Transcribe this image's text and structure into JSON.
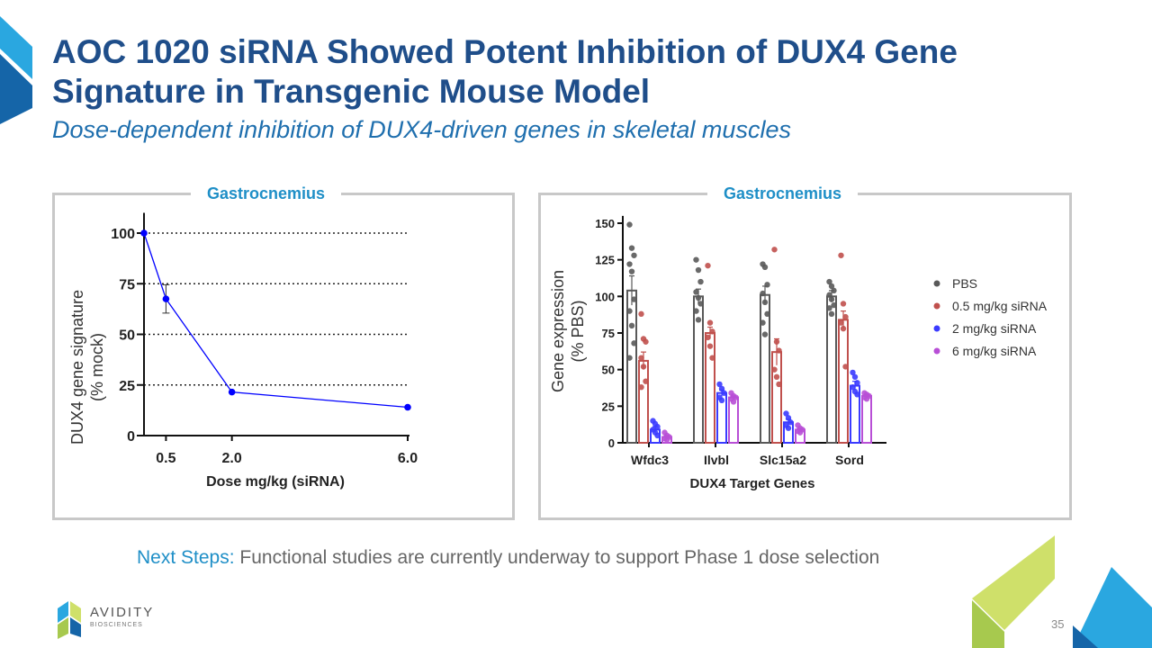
{
  "slide": {
    "title": "AOC 1020 siRNA Showed Potent Inhibition of DUX4 Gene Signature in Transgenic Mouse Model",
    "subtitle": "Dose-dependent inhibition of DUX4-driven genes in skeletal muscles",
    "next_steps_lead": "Next Steps:",
    "next_steps_text": "Functional studies are currently underway to support Phase 1 dose selection",
    "page_number": "35",
    "logo_name": "AVIDITY",
    "logo_sub": "BIOSCIENCES"
  },
  "colors": {
    "title": "#1f4e8a",
    "accent": "#1f8fc7",
    "panel_border": "#c8c8c8",
    "pbs": "#595959",
    "dose_0_5": "#c0504d",
    "dose_2": "#3b3bff",
    "dose_6": "#b84fd6"
  },
  "chart_data": [
    {
      "type": "line",
      "panel_title": "Gastrocnemius",
      "title": "",
      "xlabel": "Dose mg/kg (siRNA)",
      "ylabel_lines": [
        "DUX4 gene signature",
        "(% mock)"
      ],
      "x": [
        0,
        0.5,
        2.0,
        6.0
      ],
      "y": [
        100,
        67.5,
        21.5,
        14
      ],
      "error": [
        0,
        7,
        0,
        0
      ],
      "x_ticks": [
        "0.5",
        "2.0",
        "6.0"
      ],
      "y_ticks": [
        "0",
        "25",
        "50",
        "75",
        "100"
      ],
      "ylim": [
        0,
        110
      ],
      "gridlines_y": [
        25,
        50,
        75,
        100
      ],
      "series_color": "#0000ff"
    },
    {
      "type": "bar",
      "panel_title": "Gastrocnemius",
      "title": "",
      "xlabel": "DUX4 Target Genes",
      "ylabel_lines": [
        "Gene expression",
        "(% PBS)"
      ],
      "categories": [
        "Wfdc3",
        "Ilvbl",
        "Slc15a2",
        "Sord"
      ],
      "y_ticks": [
        "0",
        "25",
        "50",
        "75",
        "100",
        "125",
        "150"
      ],
      "ylim": [
        0,
        155
      ],
      "series": [
        {
          "name": "PBS",
          "color": "#595959",
          "values": [
            104,
            100,
            101,
            100
          ],
          "errors": [
            10,
            5,
            6,
            4
          ],
          "points": [
            [
              149,
              133,
              128,
              122,
              117,
              98,
              90,
              80,
              68,
              58
            ],
            [
              125,
              118,
              110,
              103,
              99,
              95,
              90,
              84
            ],
            [
              122,
              120,
              108,
              102,
              96,
              88,
              82,
              74
            ],
            [
              110,
              107,
              104,
              101,
              98,
              94,
              92,
              88
            ]
          ]
        },
        {
          "name": "0.5 mg/kg siRNA",
          "color": "#c0504d",
          "values": [
            56,
            75,
            62,
            84
          ],
          "errors": [
            6,
            4,
            9,
            6
          ],
          "points": [
            [
              88,
              71,
              69,
              58,
              52,
              42,
              38
            ],
            [
              121,
              82,
              76,
              72,
              66,
              58
            ],
            [
              132,
              69,
              63,
              50,
              45,
              40
            ],
            [
              128,
              95,
              86,
              82,
              78,
              52
            ]
          ]
        },
        {
          "name": "2 mg/kg siRNA",
          "color": "#3b3bff",
          "values": [
            9,
            34,
            14,
            39
          ],
          "errors": [
            2,
            2,
            2,
            3
          ],
          "points": [
            [
              15,
              13,
              11,
              9,
              7,
              5
            ],
            [
              40,
              37,
              34,
              31,
              29
            ],
            [
              20,
              17,
              14,
              12,
              10
            ],
            [
              48,
              45,
              41,
              38,
              35,
              33
            ]
          ]
        },
        {
          "name": "6 mg/kg siRNA",
          "color": "#b84fd6",
          "values": [
            4,
            31,
            9,
            32
          ],
          "errors": [
            1,
            1,
            1,
            1
          ],
          "points": [
            [
              7,
              5,
              4,
              3,
              2
            ],
            [
              34,
              32,
              31,
              30,
              28
            ],
            [
              12,
              10,
              9,
              8,
              7
            ],
            [
              34,
              33,
              32,
              31,
              30
            ]
          ]
        }
      ],
      "legend": [
        "PBS",
        "0.5 mg/kg siRNA",
        "2 mg/kg siRNA",
        "6 mg/kg siRNA"
      ],
      "legend_position": "right"
    }
  ]
}
